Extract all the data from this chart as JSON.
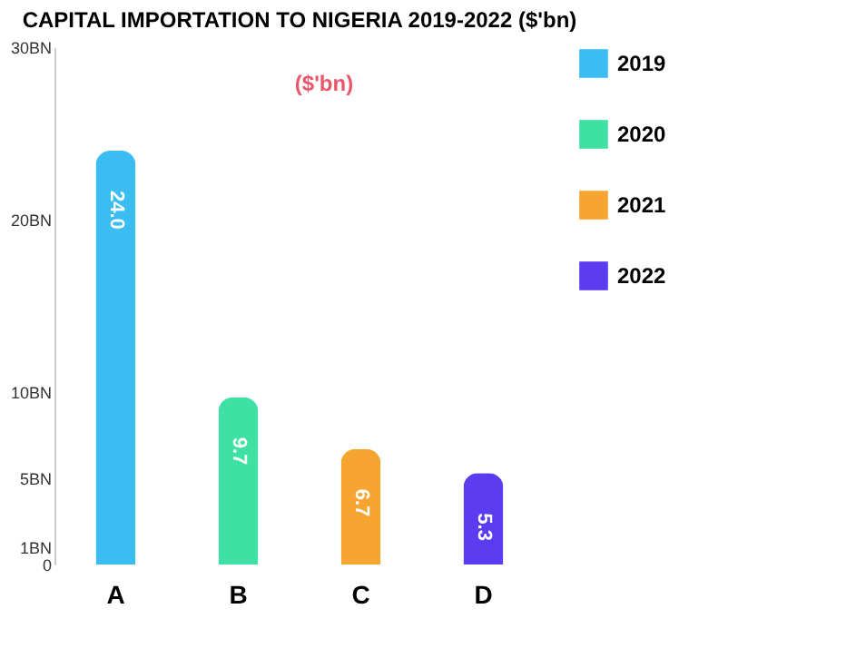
{
  "chart_data": {
    "type": "bar",
    "title": "CAPITAL IMPORTATION TO NIGERIA 2019-2022 ($'bn)",
    "annotations": [
      "($'bn)"
    ],
    "categories": [
      "A",
      "B",
      "C",
      "D"
    ],
    "series": [
      {
        "name": "2019",
        "color": "#3bbdf2",
        "values": [
          24.0,
          null,
          null,
          null
        ],
        "value_labels": [
          "24.0",
          null,
          null,
          null
        ]
      },
      {
        "name": "2020",
        "color": "#3fe0a4",
        "values": [
          null,
          9.7,
          null,
          null
        ],
        "value_labels": [
          null,
          "9.7",
          null,
          null
        ]
      },
      {
        "name": "2021",
        "color": "#f7a531",
        "values": [
          null,
          null,
          6.7,
          null
        ],
        "value_labels": [
          null,
          null,
          "6.7",
          null
        ]
      },
      {
        "name": "2022",
        "color": "#5b3cf0",
        "values": [
          null,
          null,
          null,
          5.3
        ],
        "value_labels": [
          null,
          null,
          null,
          "5.3"
        ]
      }
    ],
    "ylim": [
      0,
      30
    ],
    "yticks": [
      0,
      {
        "value": 1,
        "label": "1BN"
      },
      {
        "value": 5,
        "label": "5BN"
      },
      {
        "value": 10,
        "label": "10BN"
      },
      {
        "value": 20,
        "label": "20BN"
      },
      {
        "value": 30,
        "label": "30BN"
      }
    ],
    "legend": "right",
    "grid": false
  }
}
